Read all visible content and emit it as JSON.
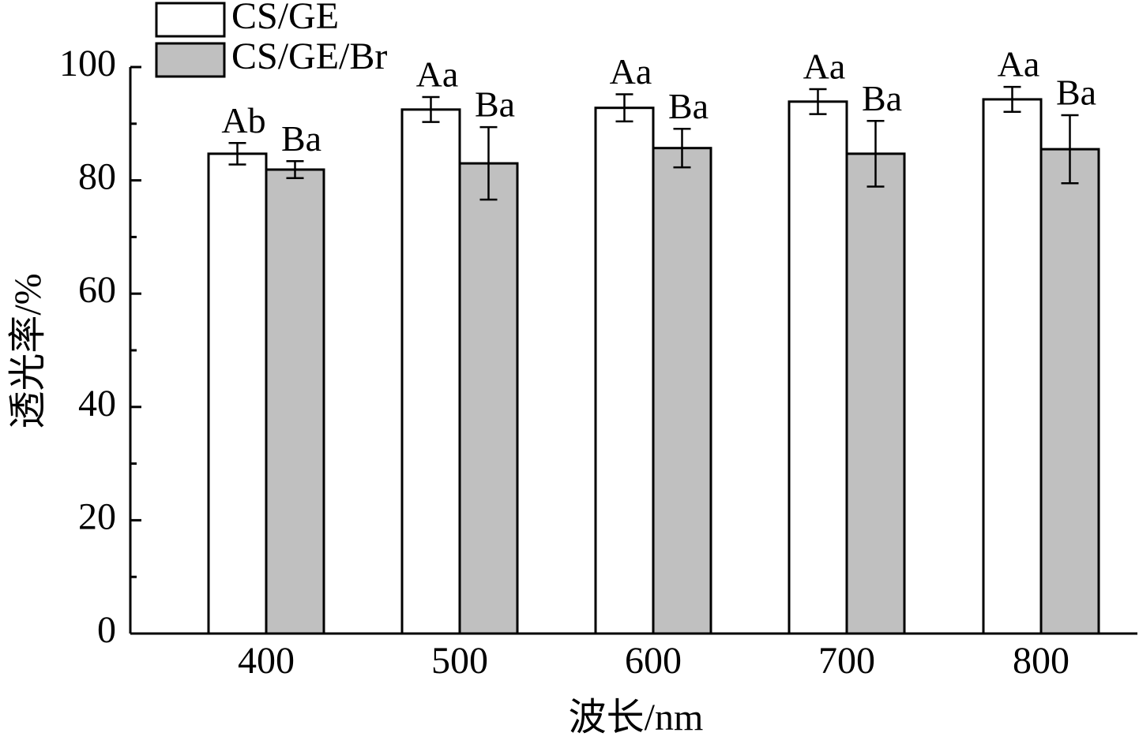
{
  "chart_data": {
    "type": "bar",
    "x_label": "波长/nm",
    "y_label": "透光率/%",
    "categories": [
      "400",
      "500",
      "600",
      "700",
      "800"
    ],
    "series": [
      {
        "name": "CS/GE",
        "color": "#ffffff",
        "values": [
          84.7,
          92.5,
          92.8,
          93.9,
          94.3
        ],
        "errors": [
          1.9,
          2.2,
          2.4,
          2.2,
          2.2
        ],
        "labels": [
          "Ab",
          "Aa",
          "Aa",
          "Aa",
          "Aa"
        ]
      },
      {
        "name": "CS/GE/Br",
        "color": "#c0c0c0",
        "values": [
          81.9,
          83.0,
          85.7,
          84.7,
          85.5
        ],
        "errors": [
          1.5,
          6.4,
          3.4,
          5.8,
          6.0
        ],
        "labels": [
          "Ba",
          "Ba",
          "Ba",
          "Ba",
          "Ba"
        ]
      }
    ],
    "ylim": [
      0,
      100
    ],
    "yticks": [
      0,
      20,
      40,
      60,
      80,
      100
    ],
    "yminorticks": [
      10,
      30,
      50,
      70,
      90
    ],
    "grid": false,
    "legend": "top-left"
  }
}
